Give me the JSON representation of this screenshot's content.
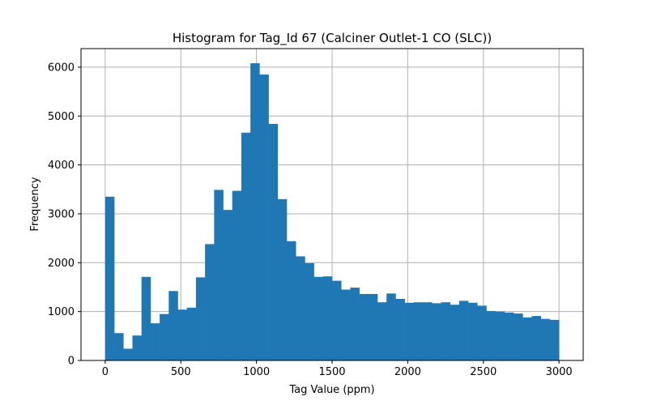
{
  "chart_data": {
    "type": "bar",
    "title": "Histogram for Tag_Id 67 (Calciner Outlet-1 CO (SLC))",
    "xlabel": "Tag Value (ppm)",
    "ylabel": "Frequency",
    "xlim": [
      -160,
      3160
    ],
    "ylim": [
      0,
      6380
    ],
    "xticks": [
      0,
      500,
      1000,
      1500,
      2000,
      2500,
      3000
    ],
    "yticks": [
      0,
      1000,
      2000,
      3000,
      4000,
      5000,
      6000
    ],
    "grid": true,
    "bar_color": "#1f77b4",
    "bin_start": 0,
    "bin_width": 60,
    "values": [
      3350,
      560,
      240,
      510,
      1710,
      760,
      950,
      1420,
      1040,
      1080,
      1700,
      2380,
      3490,
      3080,
      3470,
      4660,
      6080,
      5850,
      4840,
      3300,
      2440,
      2130,
      1990,
      1710,
      1720,
      1630,
      1450,
      1490,
      1360,
      1360,
      1190,
      1370,
      1260,
      1180,
      1190,
      1190,
      1170,
      1190,
      1140,
      1220,
      1180,
      1120,
      1010,
      1000,
      980,
      960,
      880,
      910,
      850,
      830
    ]
  }
}
